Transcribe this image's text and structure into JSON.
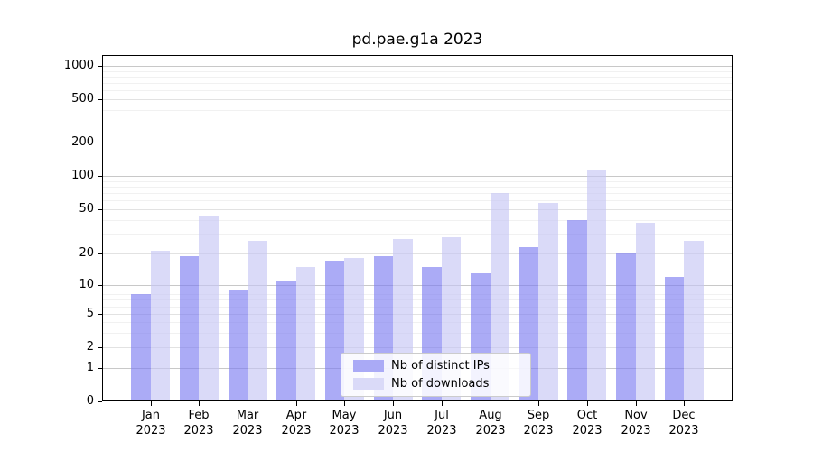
{
  "title": "pd.pae.g1a 2023",
  "chart_data": {
    "type": "bar",
    "title": "pd.pae.g1a 2023",
    "months": [
      "Jan",
      "Feb",
      "Mar",
      "Apr",
      "May",
      "Jun",
      "Jul",
      "Aug",
      "Sep",
      "Oct",
      "Nov",
      "Dec"
    ],
    "year_label": "2023",
    "categories": [
      "Jan 2023",
      "Feb 2023",
      "Mar 2023",
      "Apr 2023",
      "May 2023",
      "Jun 2023",
      "Jul 2023",
      "Aug 2023",
      "Sep 2023",
      "Oct 2023",
      "Nov 2023",
      "Dec 2023"
    ],
    "series": [
      {
        "name": "Nb of distinct IPs",
        "swatch_color": "#aaaaf6",
        "fill_color": "rgba(122,122,240,0.63)",
        "values": [
          8,
          19,
          9,
          11,
          17,
          19,
          15,
          13,
          23,
          40,
          20,
          12
        ]
      },
      {
        "name": "Nb of downloads",
        "swatch_color": "#dadaf8",
        "fill_color": "rgba(196,196,244,0.63)",
        "values": [
          21,
          44,
          26,
          15,
          18,
          27,
          28,
          70,
          57,
          114,
          38,
          26
        ]
      }
    ],
    "y_axis": {
      "scale": "log-above-1-linear-below",
      "ticks": [
        1000,
        500,
        200,
        100,
        50,
        20,
        10,
        5,
        2,
        1,
        0
      ],
      "grid": true
    },
    "legend_position": "lower center",
    "grid_colors": {
      "major_power10": "#c8c8c8",
      "major_other": "#e2e2e2",
      "minor": "#f1f1f1"
    }
  }
}
